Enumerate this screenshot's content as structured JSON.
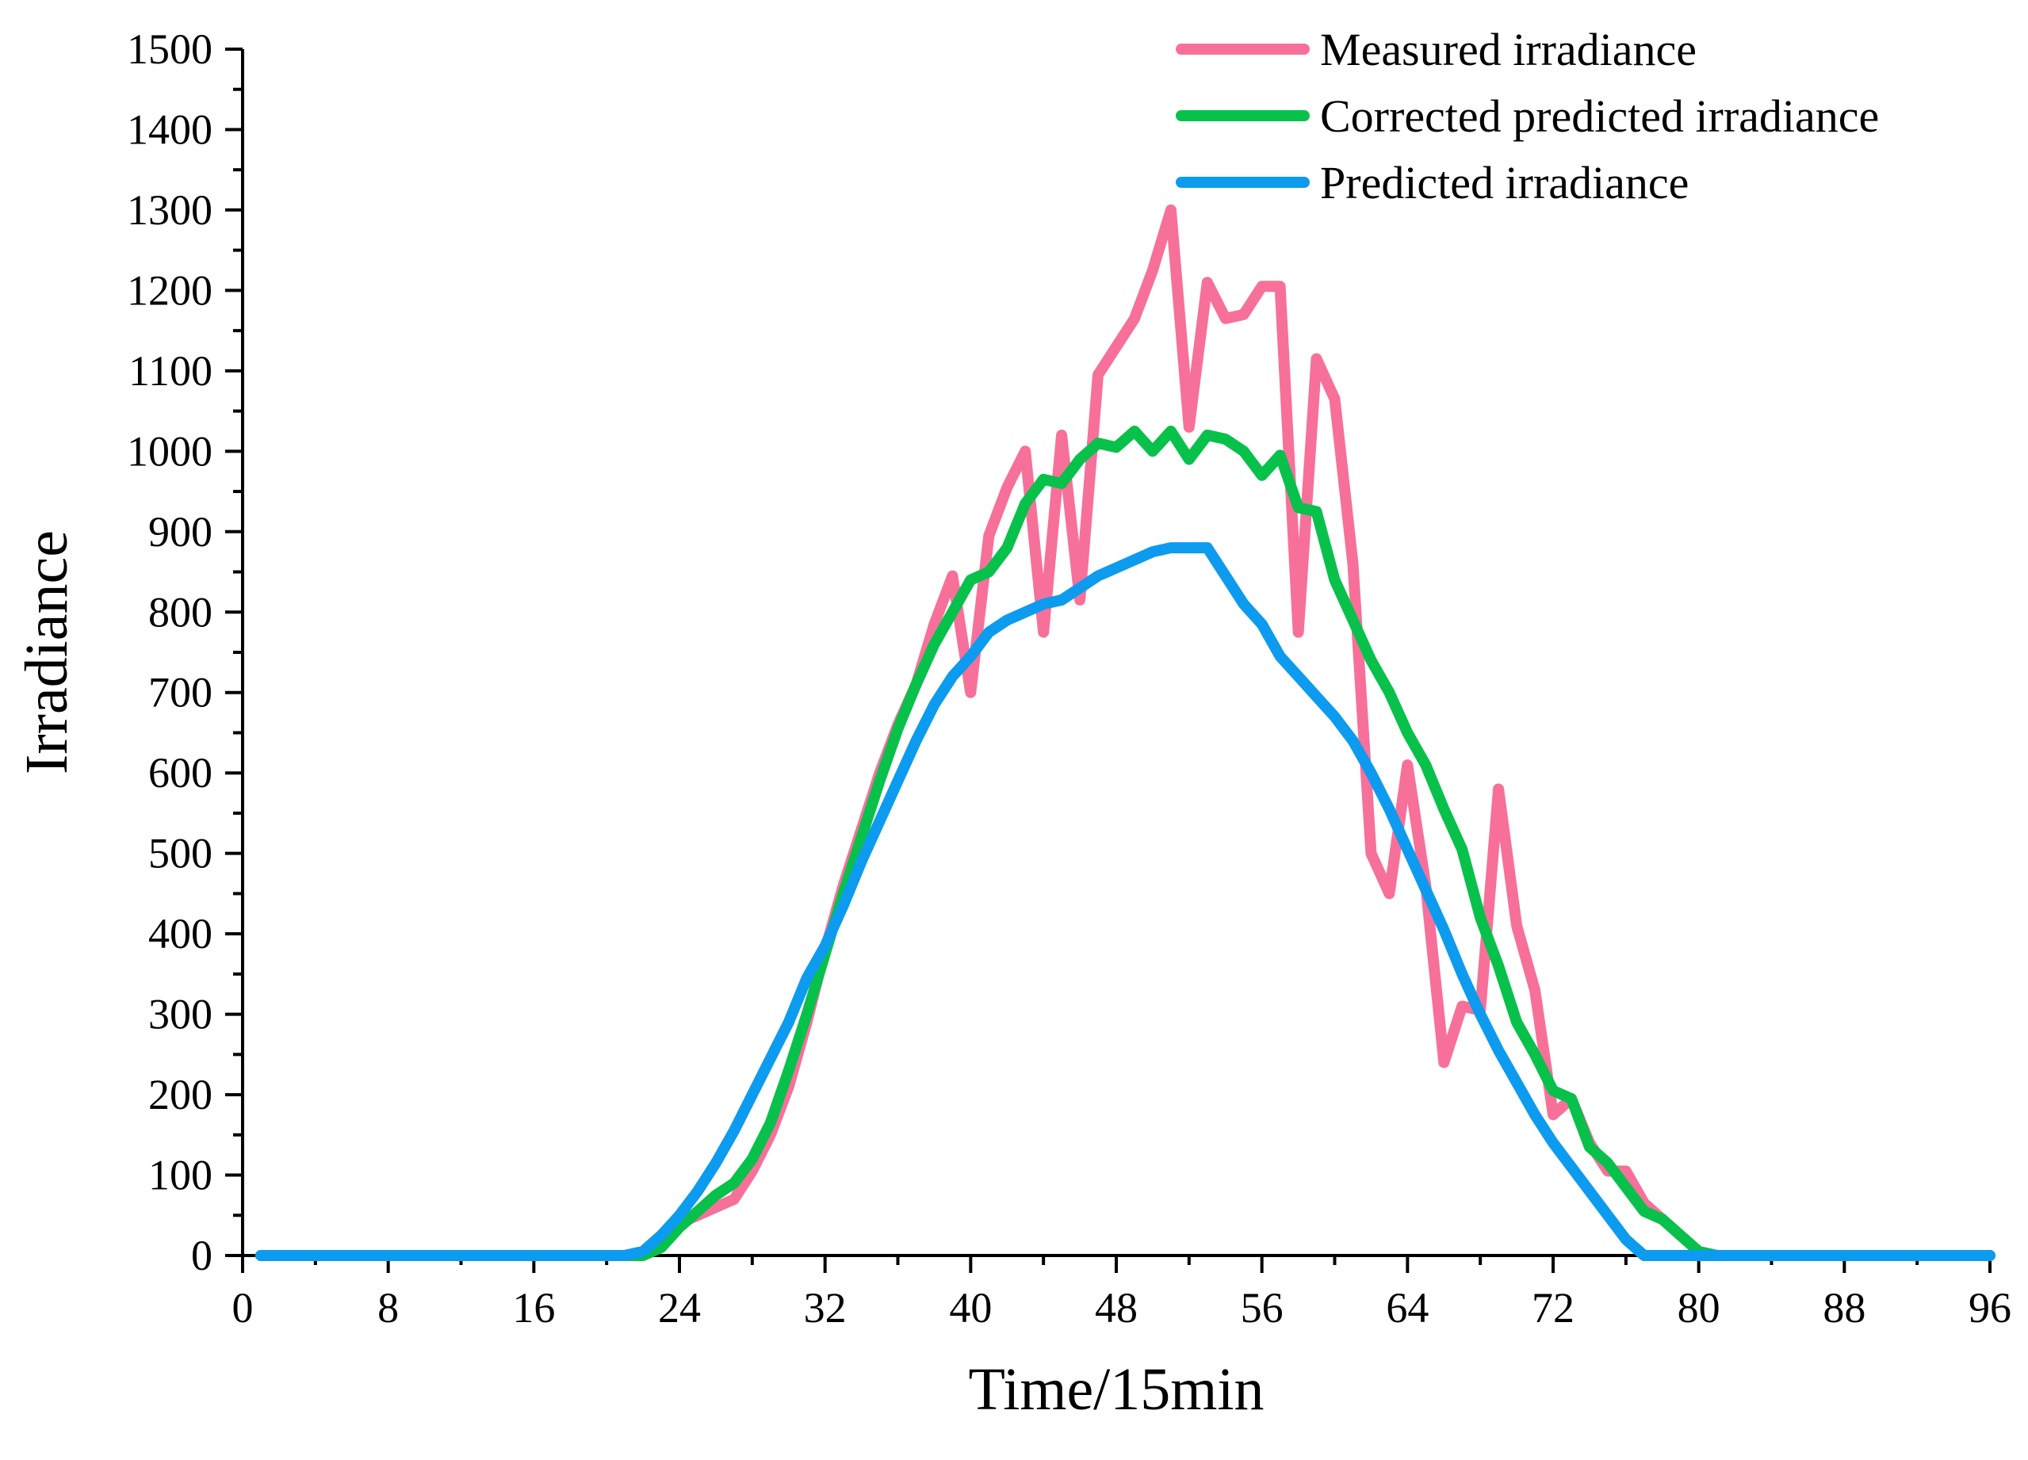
{
  "chart_data": {
    "type": "line",
    "title": "",
    "xlabel": "Time/15min",
    "ylabel": "Irradiance",
    "xlim": [
      0,
      96
    ],
    "ylim": [
      0,
      1500
    ],
    "x_ticks": [
      0,
      8,
      16,
      24,
      32,
      40,
      48,
      56,
      64,
      72,
      80,
      88,
      96
    ],
    "y_ticks": [
      0,
      100,
      200,
      300,
      400,
      500,
      600,
      700,
      800,
      900,
      1000,
      1100,
      1200,
      1300,
      1400,
      1500
    ],
    "x_minor_step": 4,
    "y_minor_step": 50,
    "grid": false,
    "legend_position": "top-right",
    "series": [
      {
        "name": "Measured irradiance",
        "color": "#f7709a",
        "x": [
          1,
          21,
          22,
          23,
          24,
          25,
          26,
          27,
          28,
          29,
          30,
          31,
          32,
          33,
          34,
          35,
          36,
          37,
          38,
          39,
          40,
          41,
          42,
          43,
          44,
          45,
          46,
          47,
          48,
          49,
          50,
          51,
          52,
          53,
          54,
          55,
          56,
          57,
          58,
          59,
          60,
          61,
          62,
          63,
          64,
          65,
          66,
          67,
          68,
          69,
          70,
          71,
          72,
          73,
          74,
          75,
          76,
          77,
          78,
          79,
          80,
          81,
          82,
          96
        ],
        "y": [
          0,
          0,
          5,
          25,
          40,
          50,
          60,
          70,
          105,
          150,
          210,
          290,
          380,
          460,
          530,
          600,
          660,
          710,
          785,
          845,
          700,
          895,
          955,
          1000,
          775,
          1020,
          815,
          1095,
          1130,
          1165,
          1225,
          1300,
          1030,
          1210,
          1165,
          1170,
          1205,
          1205,
          775,
          1115,
          1065,
          860,
          500,
          450,
          610,
          460,
          240,
          310,
          305,
          580,
          410,
          330,
          175,
          195,
          140,
          105,
          105,
          65,
          45,
          25,
          5,
          0,
          0,
          0
        ]
      },
      {
        "name": "Corrected predicted irradiance",
        "color": "#08c14a",
        "x": [
          1,
          21,
          22,
          23,
          24,
          25,
          26,
          27,
          28,
          29,
          30,
          31,
          32,
          33,
          34,
          35,
          36,
          37,
          38,
          39,
          40,
          41,
          42,
          43,
          44,
          45,
          46,
          47,
          48,
          49,
          50,
          51,
          52,
          53,
          54,
          55,
          56,
          57,
          58,
          59,
          60,
          61,
          62,
          63,
          64,
          65,
          66,
          67,
          68,
          69,
          70,
          71,
          72,
          73,
          74,
          75,
          76,
          77,
          78,
          79,
          80,
          81,
          82,
          96
        ],
        "y": [
          0,
          0,
          0,
          10,
          35,
          55,
          75,
          90,
          120,
          165,
          230,
          300,
          375,
          450,
          520,
          590,
          655,
          710,
          760,
          800,
          840,
          850,
          880,
          935,
          965,
          960,
          990,
          1010,
          1005,
          1025,
          1000,
          1025,
          990,
          1020,
          1015,
          1000,
          970,
          995,
          930,
          925,
          840,
          790,
          740,
          700,
          650,
          610,
          555,
          505,
          420,
          360,
          290,
          250,
          205,
          195,
          135,
          115,
          85,
          55,
          45,
          25,
          5,
          0,
          0,
          0
        ]
      },
      {
        "name": "Predicted irradiance",
        "color": "#0d9bef",
        "x": [
          1,
          21,
          22,
          23,
          24,
          25,
          26,
          27,
          28,
          29,
          30,
          31,
          32,
          33,
          34,
          35,
          36,
          37,
          38,
          39,
          40,
          41,
          42,
          43,
          44,
          45,
          46,
          47,
          48,
          49,
          50,
          51,
          52,
          53,
          54,
          55,
          56,
          57,
          58,
          59,
          60,
          61,
          62,
          63,
          64,
          65,
          66,
          67,
          68,
          69,
          70,
          71,
          72,
          73,
          74,
          75,
          76,
          77,
          78,
          79,
          80,
          81,
          82,
          96
        ],
        "y": [
          0,
          0,
          5,
          25,
          50,
          80,
          115,
          155,
          200,
          245,
          290,
          345,
          385,
          435,
          490,
          540,
          590,
          640,
          685,
          720,
          745,
          775,
          790,
          800,
          810,
          815,
          830,
          845,
          855,
          865,
          875,
          880,
          880,
          880,
          845,
          810,
          785,
          745,
          720,
          695,
          670,
          640,
          600,
          555,
          505,
          455,
          405,
          350,
          300,
          255,
          215,
          175,
          140,
          110,
          80,
          50,
          20,
          0,
          0,
          0,
          0,
          0,
          0,
          0
        ]
      }
    ]
  }
}
